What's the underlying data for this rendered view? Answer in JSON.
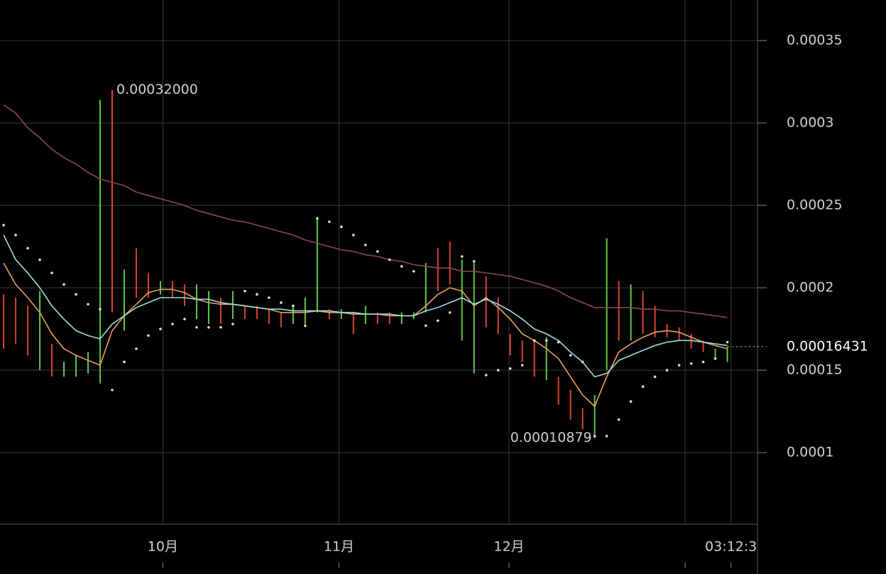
{
  "chart_data": {
    "type": "ohlc",
    "ylim": [
      5.65e-05,
      0.0003746
    ],
    "yticks": [
      0.00035,
      0.0003,
      0.00025,
      0.0002,
      0.00015,
      0.0001
    ],
    "xlim": [
      -0.3,
      62.5
    ],
    "xticks": [
      {
        "value": 13.2,
        "label": "10月"
      },
      {
        "value": 27.8,
        "label": "11月"
      },
      {
        "value": 41.9,
        "label": "12月"
      },
      {
        "value": 56.5,
        "label": null
      },
      {
        "value": 60.3,
        "label": "03:12:3"
      }
    ],
    "grid": true,
    "up_color": "#5ec84a",
    "down_color": "#d9442e",
    "open": [
      0.000196,
      0.000194,
      0.000189,
      0.00015,
      0.000166,
      0.000146,
      0.000146,
      0.000148,
      0.000142,
      0.00032,
      0.000174,
      0.000224,
      0.000209,
      0.000196,
      0.000204,
      0.000202,
      0.000181,
      0.000178,
      0.000194,
      0.000181,
      0.000189,
      0.000189,
      0.000187,
      0.000185,
      0.000178,
      0.000178,
      0.000185,
      0.000187,
      0.000181,
      0.000185,
      0.000178,
      0.000185,
      0.000185,
      0.000178,
      0.000181,
      0.000185,
      0.000224,
      0.000228,
      0.000168,
      0.000148,
      0.000207,
      0.000194,
      0.000172,
      0.000168,
      0.000168,
      0.000144,
      0.000146,
      0.000138,
      0.000127,
      0.00010879,
      0.00015,
      0.000204,
      0.000168,
      0.000198,
      0.000189,
      0.000178,
      0.000176,
      0.000172,
      0.000168,
      0.000157,
      0.000155
    ],
    "close": [
      0.000163,
      0.000166,
      0.000159,
      0.000198,
      0.000146,
      0.000155,
      0.000159,
      0.000161,
      0.000314,
      0.000185,
      0.000211,
      0.000194,
      0.000194,
      0.000204,
      0.000194,
      0.000189,
      0.000202,
      0.000198,
      0.000178,
      0.000198,
      0.000181,
      0.000181,
      0.000178,
      0.000176,
      0.000189,
      0.000194,
      0.000243,
      0.000181,
      0.000187,
      0.000172,
      0.000189,
      0.000178,
      0.000178,
      0.000185,
      0.000185,
      0.000215,
      0.000198,
      0.000202,
      0.000217,
      0.000215,
      0.000176,
      0.000172,
      0.000159,
      0.000155,
      0.000146,
      0.00017,
      0.000129,
      0.00012,
      0.000114,
      0.000135,
      0.00023,
      0.000168,
      0.000202,
      0.000172,
      0.00017,
      0.00017,
      0.000168,
      0.000163,
      0.000161,
      0.000163,
      0.00016431
    ],
    "series": [
      {
        "color": "#8c4656",
        "values": [
          0.000311,
          0.000306,
          0.000297,
          0.000291,
          0.000284,
          0.000279,
          0.000275,
          0.00027,
          0.000266,
          0.000264,
          0.000262,
          0.000258,
          0.000256,
          0.000254,
          0.000252,
          0.00025,
          0.000247,
          0.000245,
          0.000243,
          0.000241,
          0.00024,
          0.000238,
          0.000236,
          0.000234,
          0.000232,
          0.000229,
          0.000227,
          0.000225,
          0.000223,
          0.000222,
          0.00022,
          0.000219,
          0.000217,
          0.000216,
          0.000214,
          0.000213,
          0.000212,
          0.000212,
          0.00021,
          0.00021,
          0.000209,
          0.000208,
          0.000207,
          0.000205,
          0.000203,
          0.000201,
          0.000198,
          0.000194,
          0.000191,
          0.000188,
          0.000188,
          0.000188,
          0.000188,
          0.000187,
          0.000187,
          0.000186,
          0.000186,
          0.000185,
          0.000184,
          0.000183,
          0.000182
        ]
      },
      {
        "color": "#e8a060",
        "values": [
          0.000215,
          0.000202,
          0.000194,
          0.000185,
          0.000172,
          0.000163,
          0.000159,
          0.000156,
          0.000153,
          0.000174,
          0.000183,
          0.00019,
          0.000197,
          0.000199,
          0.000199,
          0.000197,
          0.000193,
          0.000191,
          0.00019,
          0.00019,
          0.000189,
          0.000188,
          0.000187,
          0.000185,
          0.000185,
          0.000185,
          0.000186,
          0.000185,
          0.000185,
          0.000184,
          0.000184,
          0.000184,
          0.000183,
          0.000183,
          0.000183,
          0.000189,
          0.000196,
          0.0002,
          0.000198,
          0.000189,
          0.000194,
          0.000188,
          0.000181,
          0.000172,
          0.000168,
          0.000163,
          0.000157,
          0.000146,
          0.000135,
          0.000128,
          0.000146,
          0.000161,
          0.000166,
          0.00017,
          0.000173,
          0.000174,
          0.000173,
          0.00017,
          0.000167,
          0.000165,
          0.000163
        ]
      },
      {
        "color": "#9fdde0",
        "values": [
          0.000232,
          0.000217,
          0.000209,
          0.0002,
          0.000189,
          0.000181,
          0.000174,
          0.000171,
          0.000169,
          0.000178,
          0.000183,
          0.000188,
          0.000191,
          0.000194,
          0.000194,
          0.000194,
          0.000193,
          0.000193,
          0.000191,
          0.00019,
          0.000189,
          0.000188,
          0.000187,
          0.000187,
          0.000186,
          0.000186,
          0.000186,
          0.000186,
          0.000185,
          0.000185,
          0.000184,
          0.000184,
          0.000184,
          0.000183,
          0.000183,
          0.000186,
          0.000188,
          0.000191,
          0.000194,
          0.00019,
          0.000193,
          0.00019,
          0.000186,
          0.000181,
          0.000175,
          0.000172,
          0.000168,
          0.000161,
          0.000155,
          0.000146,
          0.000148,
          0.000156,
          0.000159,
          0.000162,
          0.000165,
          0.000167,
          0.000168,
          0.000168,
          0.000167,
          0.000166,
          0.000165
        ]
      },
      {
        "color": "#dddddd",
        "dotted": true,
        "values": [
          0.000238,
          0.000232,
          0.000224,
          0.000217,
          0.000209,
          0.000202,
          0.000196,
          0.00019,
          0.000187,
          0.000138,
          0.000155,
          0.000163,
          0.000171,
          0.000175,
          0.000178,
          0.000181,
          0.000176,
          0.000176,
          0.000176,
          0.000178,
          0.000198,
          0.000196,
          0.000194,
          0.000191,
          0.000189,
          0.000177,
          0.000242,
          0.00024,
          0.000237,
          0.000232,
          0.000226,
          0.000222,
          0.000217,
          0.000213,
          0.00021,
          0.000177,
          0.00018,
          0.000185,
          0.000219,
          0.000216,
          0.000147,
          0.00015,
          0.000151,
          0.000153,
          0.000168,
          0.000168,
          0.000167,
          0.000159,
          0.000155,
          0.00011,
          0.00011,
          0.00012,
          0.000131,
          0.00014,
          0.000146,
          0.00015,
          0.000153,
          0.000154,
          0.000155,
          0.000157,
          0.000167
        ]
      }
    ],
    "annotations": [
      {
        "value": 0.00032,
        "label": "0.00032000"
      },
      {
        "value": 0.00010879,
        "label": "0.00010879"
      }
    ],
    "last_price": {
      "value": 0.00016431,
      "label": "0.00016431"
    }
  }
}
